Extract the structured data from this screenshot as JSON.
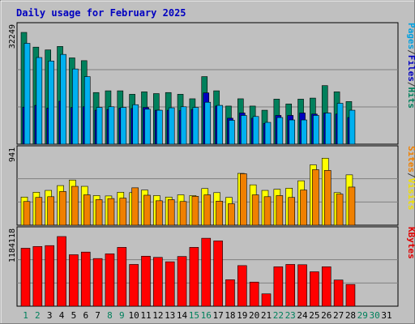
{
  "chart_data": {
    "type": "bar",
    "title": "Daily usage for February 2025",
    "days": [
      "1",
      "2",
      "3",
      "4",
      "5",
      "6",
      "7",
      "8",
      "9",
      "10",
      "11",
      "12",
      "13",
      "14",
      "15",
      "16",
      "17",
      "18",
      "19",
      "20",
      "21",
      "22",
      "23",
      "24",
      "25",
      "26",
      "27",
      "28",
      "29",
      "30",
      "31"
    ],
    "weekend_days": [
      "1",
      "2",
      "8",
      "9",
      "15",
      "16",
      "22",
      "23",
      "29",
      "30"
    ],
    "no_data_days": [
      "29",
      "30",
      "31"
    ],
    "panels": [
      {
        "id": "traffic",
        "ymax_label": "32249",
        "ymax": 32249,
        "legend": [
          "Pages",
          "/",
          "Files",
          "/",
          "Hits"
        ],
        "legend_colors": [
          "#00a0e0",
          "#333333",
          "#0000c0",
          "#333333",
          "#00805c"
        ],
        "series": [
          {
            "name": "Hits",
            "color": "#00805c",
            "values": [
              32249,
              28000,
              27200,
              28200,
              24900,
              24100,
              14900,
              15400,
              15400,
              14400,
              15100,
              14600,
              14900,
              14400,
              13100,
              19500,
              15400,
              11000,
              13100,
              11000,
              9800,
              13000,
              11600,
              13000,
              13300,
              16900,
              15100,
              12300
            ]
          },
          {
            "name": "Files",
            "color": "#0000c0",
            "values": [
              10700,
              11200,
              10400,
              12400,
              10600,
              10800,
              9800,
              10000,
              10400,
              10300,
              10600,
              9800,
              9800,
              9700,
              10000,
              14800,
              11000,
              7500,
              9000,
              7500,
              6000,
              8300,
              8300,
              9000,
              8700,
              9000,
              8700,
              7700
            ]
          },
          {
            "name": "Pages",
            "color": "#00b0f0",
            "values": [
              29100,
              25000,
              24000,
              25900,
              21700,
              19500,
              10600,
              10800,
              10600,
              11400,
              10100,
              9800,
              10500,
              10800,
              10600,
              12100,
              11200,
              6900,
              8300,
              8000,
              6300,
              7700,
              7000,
              7000,
              8300,
              9000,
              11800,
              9800
            ]
          }
        ]
      },
      {
        "id": "visits",
        "ymax_label": "941",
        "ymax": 941,
        "legend": [
          "Sites",
          "/",
          "Visits"
        ],
        "legend_colors": [
          "#f08000",
          "#333333",
          "#f0e000"
        ],
        "series": [
          {
            "name": "Visits",
            "color": "#ffff00",
            "values": [
              380,
              445,
              470,
              535,
              610,
              525,
              400,
              395,
              445,
              440,
              475,
              400,
              380,
              410,
              400,
              495,
              440,
              375,
              700,
              545,
              470,
              485,
              500,
              600,
              815,
              905,
              440,
              680
            ]
          },
          {
            "name": "Sites",
            "color": "#f08000",
            "values": [
              320,
              375,
              385,
              455,
              525,
              410,
              345,
              360,
              365,
              505,
              405,
              330,
              345,
              320,
              390,
              410,
              325,
              290,
              695,
              410,
              385,
              400,
              375,
              475,
              750,
              740,
              420,
              515
            ]
          }
        ]
      },
      {
        "id": "kbytes",
        "ymax_label": "1184118",
        "ymax": 1184118,
        "legend": [
          "KBytes"
        ],
        "legend_colors": [
          "#e00000"
        ],
        "series": [
          {
            "name": "KBytes",
            "color": "#ff0000",
            "values": [
              985000,
              1015000,
              1030000,
              1184118,
              875000,
              920000,
              810000,
              890000,
              1000000,
              710000,
              850000,
              830000,
              755000,
              845000,
              1000000,
              1155000,
              1110000,
              450000,
              690000,
              410000,
              210000,
              670000,
              710000,
              705000,
              585000,
              670000,
              445000,
              370000
            ]
          }
        ]
      }
    ]
  }
}
